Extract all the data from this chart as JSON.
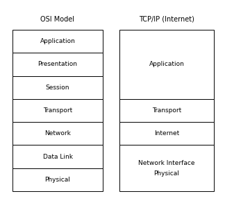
{
  "title_osi": "OSI Model",
  "title_tcp": "TCP/IP (Internet)",
  "osi_layers": [
    "Application",
    "Presentation",
    "Session",
    "Transport",
    "Network",
    "Data Link",
    "Physical"
  ],
  "tcp_layers": [
    "Application",
    "Transport",
    "Internet",
    "Network Interface\nPhysical"
  ],
  "tcp_spans": [
    3,
    1,
    1,
    2
  ],
  "background_color": "#ffffff",
  "box_color": "#ffffff",
  "border_color": "#000000",
  "text_color": "#000000",
  "title_fontsize": 7,
  "layer_fontsize": 6.5,
  "font_family": "Courier New"
}
